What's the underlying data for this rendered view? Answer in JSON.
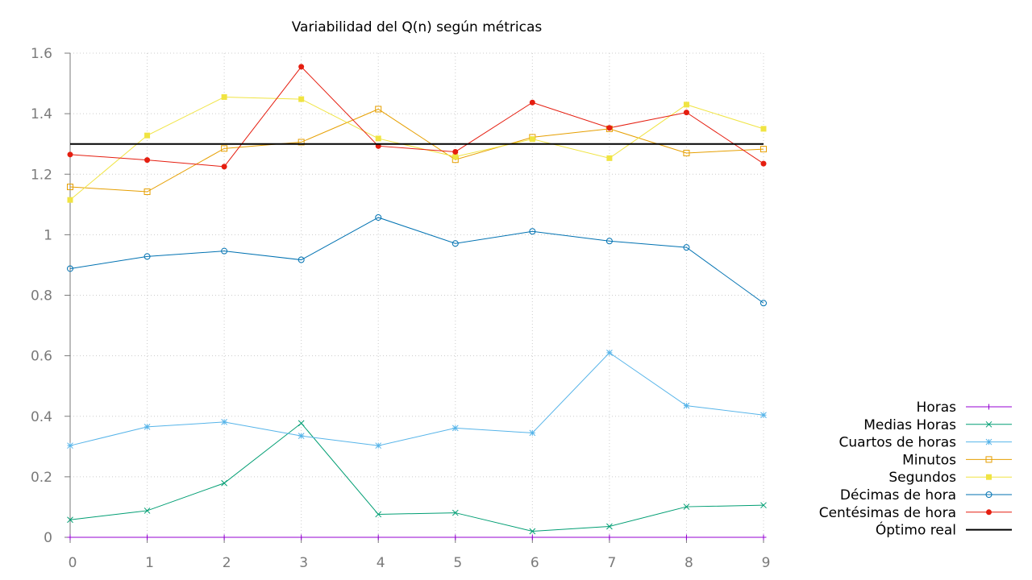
{
  "chart_data": {
    "type": "line",
    "title": "Variabilidad del Q(n) según métricas",
    "xlabel": "",
    "ylabel": "",
    "x": [
      0,
      1,
      2,
      3,
      4,
      5,
      6,
      7,
      8,
      9
    ],
    "xlim": [
      0,
      9
    ],
    "ylim": [
      0,
      1.6
    ],
    "x_ticks": [
      "0",
      "1",
      "2",
      "3",
      "4",
      "5",
      "6",
      "7",
      "8",
      "9"
    ],
    "y_ticks": [
      {
        "value": 0,
        "label": "0"
      },
      {
        "value": 0.2,
        "label": "0.2"
      },
      {
        "value": 0.4,
        "label": "0.4"
      },
      {
        "value": 0.6,
        "label": "0.6"
      },
      {
        "value": 0.8,
        "label": "0.8"
      },
      {
        "value": 1.0,
        "label": "1"
      },
      {
        "value": 1.2,
        "label": "1.2"
      },
      {
        "value": 1.4,
        "label": "1.4"
      },
      {
        "value": 1.6,
        "label": "1.6"
      }
    ],
    "grid": true,
    "legend_position": "bottom-right, outside plot",
    "series": [
      {
        "name": "Horas",
        "color": "#9400d3",
        "marker": "plus",
        "values": [
          0,
          0,
          0,
          0,
          0,
          0,
          0,
          0,
          0,
          0
        ]
      },
      {
        "name": "Medias Horas",
        "color": "#009e73",
        "marker": "cross",
        "values": [
          0.058,
          0.088,
          0.179,
          0.377,
          0.076,
          0.081,
          0.02,
          0.036,
          0.101,
          0.106
        ]
      },
      {
        "name": "Cuartos de horas",
        "color": "#56b4e9",
        "marker": "star",
        "values": [
          0.303,
          0.365,
          0.381,
          0.335,
          0.303,
          0.361,
          0.345,
          0.61,
          0.435,
          0.404
        ]
      },
      {
        "name": "Minutos",
        "color": "#e69f00",
        "marker": "open-square",
        "values": [
          1.158,
          1.142,
          1.285,
          1.306,
          1.415,
          1.248,
          1.322,
          1.35,
          1.27,
          1.283
        ]
      },
      {
        "name": "Segundos",
        "color": "#f0e442",
        "marker": "filled-square",
        "values": [
          1.115,
          1.328,
          1.455,
          1.448,
          1.318,
          1.258,
          1.316,
          1.253,
          1.43,
          1.35
        ]
      },
      {
        "name": "Décimas de hora",
        "color": "#0072b2",
        "marker": "open-circle",
        "values": [
          0.888,
          0.928,
          0.946,
          0.917,
          1.057,
          0.971,
          1.011,
          0.979,
          0.958,
          0.774
        ]
      },
      {
        "name": "Centésimas de hora",
        "color": "#e51e10",
        "marker": "filled-circle",
        "values": [
          1.265,
          1.247,
          1.225,
          1.555,
          1.293,
          1.274,
          1.437,
          1.353,
          1.404,
          1.235
        ]
      },
      {
        "name": "Óptimo real",
        "color": "#000000",
        "marker": "none",
        "values": [
          1.3,
          1.3,
          1.3,
          1.3,
          1.3,
          1.3,
          1.3,
          1.3,
          1.3,
          1.3
        ]
      }
    ]
  }
}
